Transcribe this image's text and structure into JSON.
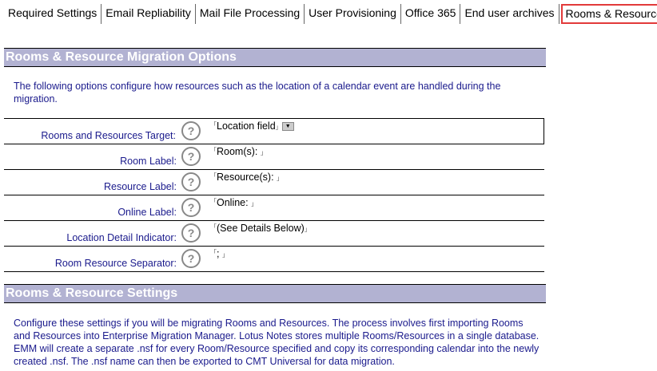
{
  "tabs": [
    "Required Settings",
    "Email Repliability",
    "Mail File Processing",
    "User Provisioning",
    "Office 365",
    "End user archives",
    "Rooms & Resources"
  ],
  "active_tab": "Rooms & Resources",
  "section1": {
    "title": "Rooms & Resource Migration Options",
    "intro": "The following options configure how resources such as the location of a calendar event are handled during the migration."
  },
  "rows": [
    {
      "label": "Rooms and Resources Target:",
      "value": "Location field",
      "dropdown": true
    },
    {
      "label": "Room Label:",
      "value": "Room(s): "
    },
    {
      "label": "Resource Label:",
      "value": "Resource(s): "
    },
    {
      "label": "Online Label:",
      "value": "Online: "
    },
    {
      "label": "Location Detail Indicator:",
      "value": "(See Details Below)"
    },
    {
      "label": "Room Resource Separator:",
      "value": "; "
    }
  ],
  "help_glyph": "?",
  "section2": {
    "title": "Rooms & Resource Settings",
    "intro": "Configure these settings if you will be migrating Rooms and Resources.  The process involves first importing Rooms and Resources into Enterprise Migration Manager. Lotus Notes stores multiple Rooms/Resources in a single database.  EMM will create a separate .nsf for every Room/Resource specified and copy its corresponding calendar into the newly created .nsf.   The .nsf name can then be exported to CMT Universal for data migration."
  }
}
